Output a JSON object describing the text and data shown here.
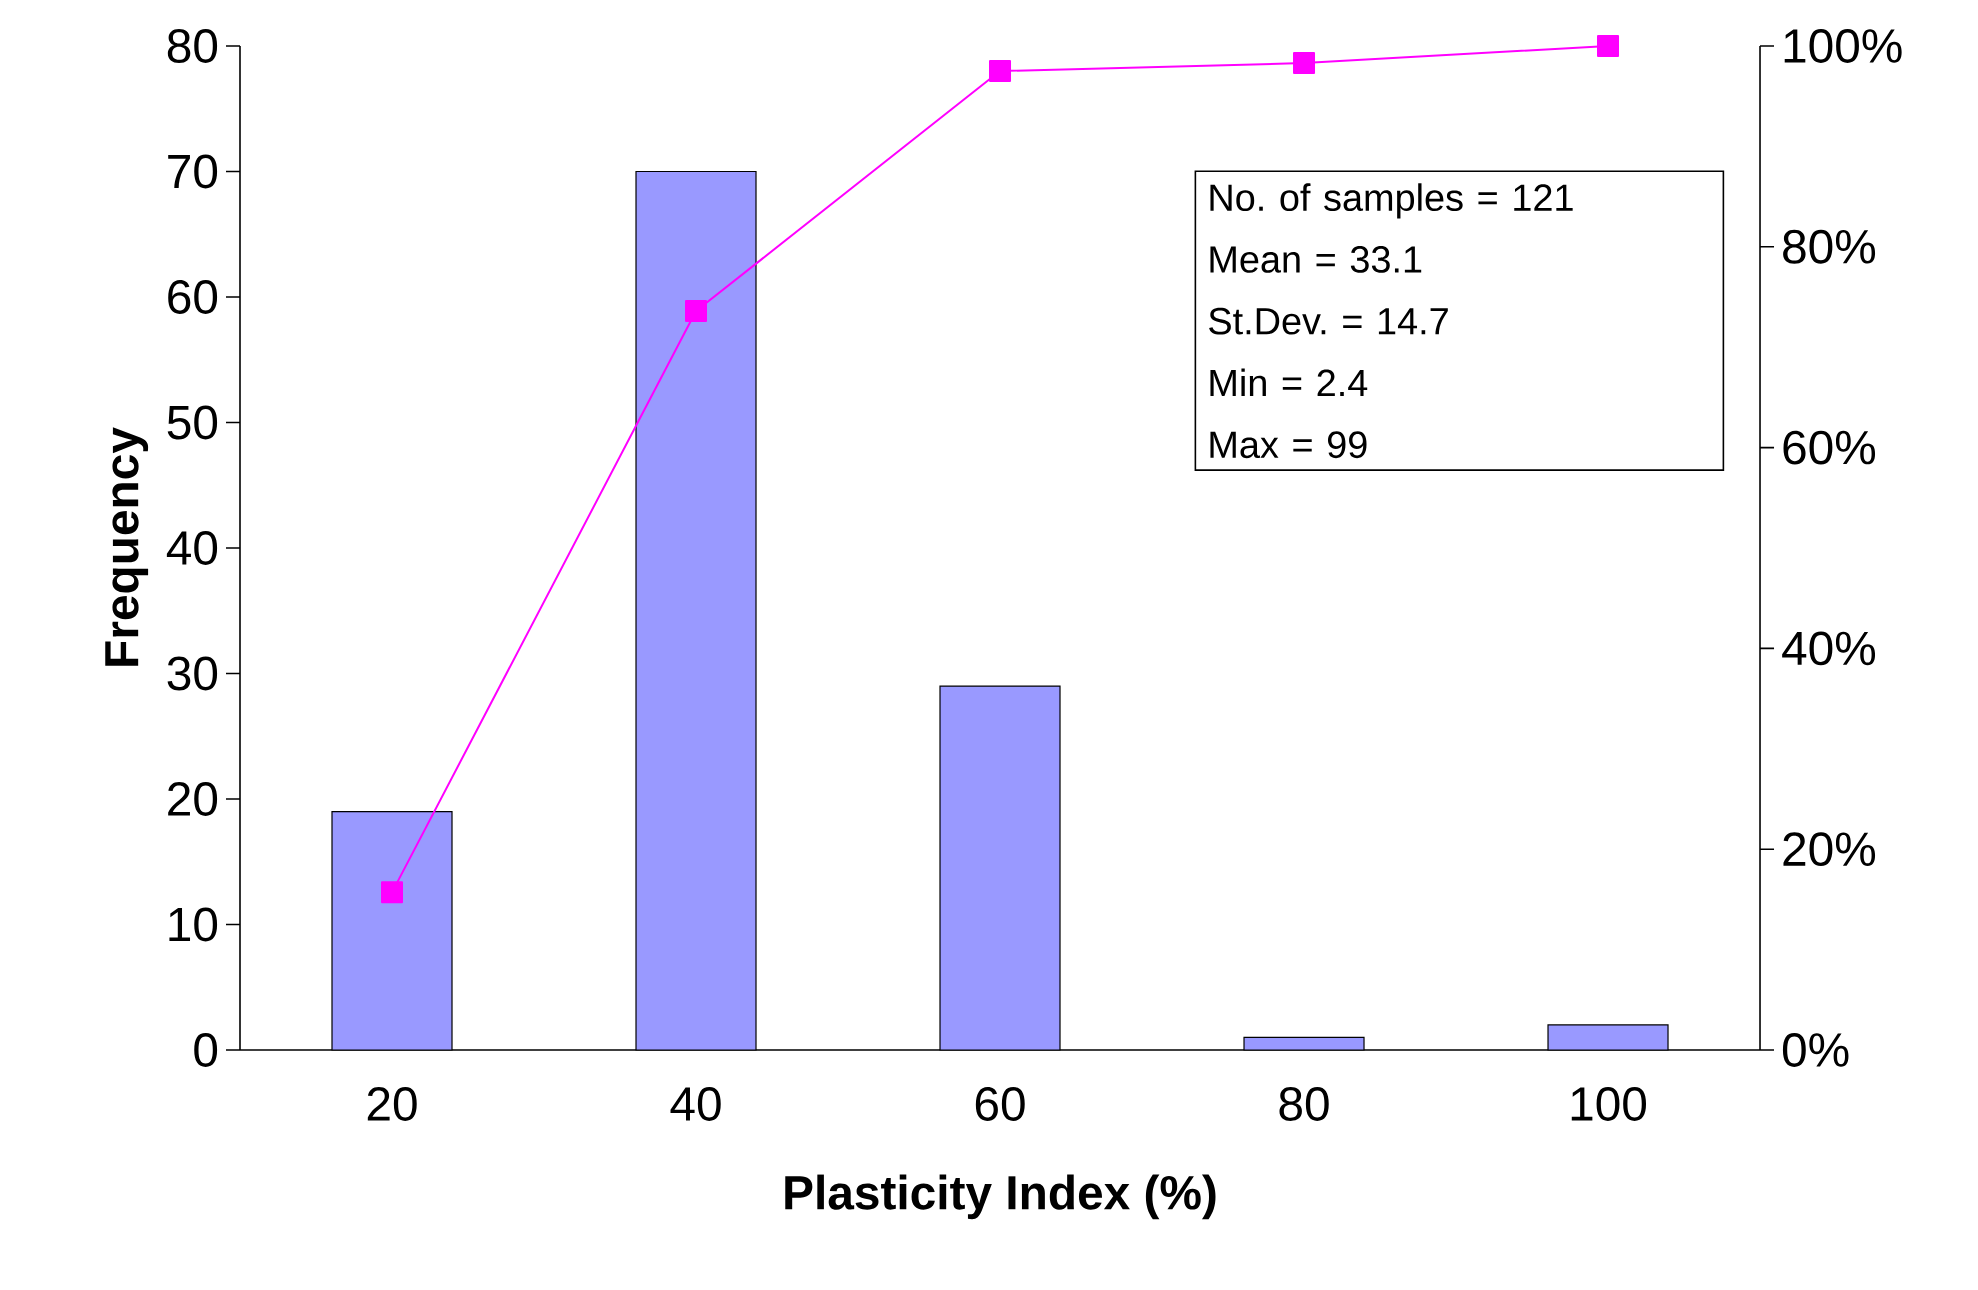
{
  "chart_data": {
    "type": "bar",
    "xlabel": "Plasticity Index (%)",
    "ylabel": "Frequency",
    "categories": [
      "20",
      "40",
      "60",
      "80",
      "100"
    ],
    "series": [
      {
        "color": "#9999ff",
        "values": [
          19,
          70,
          29,
          1,
          2
        ]
      },
      {
        "type": "line",
        "axis": "y2",
        "color": "#ff00ff",
        "marker": "square",
        "values": [
          15.7,
          73.6,
          97.5,
          98.3,
          100
        ]
      }
    ],
    "ylim": [
      0,
      80
    ],
    "yticks": [
      0,
      10,
      20,
      30,
      40,
      50,
      60,
      70,
      80
    ],
    "y2lim": [
      0,
      100
    ],
    "y2ticks": [
      {
        "value": 0,
        "label": "0%"
      },
      {
        "value": 20,
        "label": "20%"
      },
      {
        "value": 40,
        "label": "40%"
      },
      {
        "value": 60,
        "label": "60%"
      },
      {
        "value": 80,
        "label": "80%"
      },
      {
        "value": 100,
        "label": "100%"
      }
    ],
    "annotations": [
      "No. of samples = 121",
      "Mean = 33.1",
      "St.Dev. = 14.7",
      "Min = 2.4",
      "Max = 99"
    ]
  }
}
